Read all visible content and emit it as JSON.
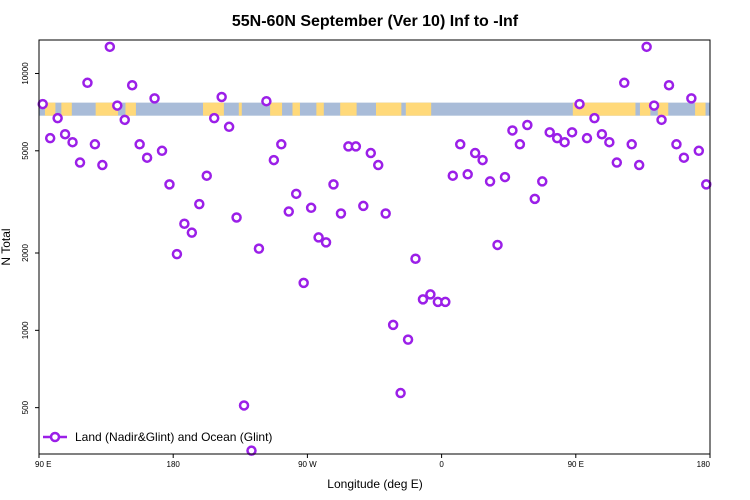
{
  "chart_data": {
    "type": "scatter",
    "title": "55N-60N September (Ver 10)   Inf to -Inf",
    "xlabel": "Longitude (deg E)",
    "ylabel": "N Total",
    "x_ticks": [
      {
        "value": 90,
        "label": "90 E"
      },
      {
        "value": 180,
        "label": "180"
      },
      {
        "value": 270,
        "label": "90 W"
      },
      {
        "value": 360,
        "label": "0"
      },
      {
        "value": 450,
        "label": "90 E"
      },
      {
        "value": 540,
        "label": "180"
      }
    ],
    "xlim": [
      90,
      540
    ],
    "y_scale": "log",
    "ylim": [
      330,
      13500
    ],
    "y_ticks": [
      {
        "value": 500,
        "label": "500"
      },
      {
        "value": 1000,
        "label": "1000"
      },
      {
        "value": 2000,
        "label": "2000"
      },
      {
        "value": 5000,
        "label": "5000"
      },
      {
        "value": 10000,
        "label": "10000"
      }
    ],
    "legend": {
      "label": "Land (Nadir&Glint) and Ocean (Glint)",
      "position": "bottom-left"
    },
    "colors": {
      "marker": "#9B1FE8",
      "land": "#FFD97A",
      "ocean": "#A9BCD8",
      "axis": "#000000"
    },
    "series": [
      {
        "name": "Land (Nadir&Glint) and Ocean (Glint)",
        "x": [
          92.5,
          97.5,
          102.5,
          107.5,
          112.5,
          117.5,
          122.5,
          127.5,
          132.5,
          137.5,
          142.5,
          147.5,
          152.5,
          157.5,
          162.5,
          167.5,
          172.5,
          177.5,
          182.5,
          187.5,
          192.5,
          197.5,
          202.5,
          207.5,
          212.5,
          217.5,
          222.5,
          227.5,
          232.5,
          237.5,
          242.5,
          247.5,
          252.5,
          257.5,
          262.5,
          267.5,
          272.5,
          277.5,
          282.5,
          287.5,
          292.5,
          297.5,
          302.5,
          307.5,
          312.5,
          317.5,
          322.5,
          327.5,
          332.5,
          337.5,
          342.5,
          347.5,
          352.5,
          357.5,
          362.5,
          367.5,
          372.5,
          377.5,
          382.5,
          387.5,
          392.5,
          397.5,
          402.5,
          407.5,
          412.5,
          417.5,
          422.5,
          427.5,
          432.5,
          437.5,
          442.5,
          447.5,
          452.5,
          457.5,
          462.5,
          467.5,
          472.5,
          477.5,
          482.5,
          487.5,
          492.5,
          497.5,
          502.5,
          507.5,
          512.5,
          517.5,
          522.5,
          527.5,
          532.5,
          537.5
        ],
        "values": [
          7600,
          5600,
          6700,
          5800,
          5400,
          4500,
          9200,
          5300,
          4400,
          12700,
          7500,
          6600,
          9000,
          5300,
          4700,
          8000,
          5000,
          3700,
          1980,
          2600,
          2400,
          3100,
          4000,
          6700,
          8100,
          6200,
          2750,
          510,
          340,
          2080,
          7800,
          4600,
          5300,
          2900,
          3400,
          1530,
          3000,
          2300,
          2200,
          3700,
          2850,
          5200,
          5200,
          3050,
          4900,
          4400,
          2850,
          1050,
          570,
          920,
          1900,
          1320,
          1380,
          1290,
          1290,
          4000,
          5300,
          4050,
          4900,
          4600,
          3800,
          2150,
          3950,
          6000,
          5300,
          6300,
          3250,
          3800,
          5900,
          5600,
          5400,
          5900,
          7600,
          5600,
          6700,
          5800,
          5400,
          4500,
          9200,
          5300,
          4400,
          12700,
          7500,
          6600,
          9000,
          5300,
          4700,
          8000,
          5000,
          3700
        ]
      }
    ],
    "map_strip": {
      "land_spans": [
        [
          94,
          101
        ],
        [
          105,
          112
        ],
        [
          128,
          143
        ],
        [
          148,
          155
        ],
        [
          200,
          214
        ],
        [
          224,
          226
        ],
        [
          245,
          253
        ],
        [
          260,
          265
        ],
        [
          276,
          281
        ],
        [
          292,
          303
        ],
        [
          316,
          333
        ],
        [
          336,
          353
        ],
        [
          448,
          490
        ],
        [
          493,
          500
        ],
        [
          505,
          512
        ],
        [
          530,
          537
        ]
      ]
    }
  }
}
